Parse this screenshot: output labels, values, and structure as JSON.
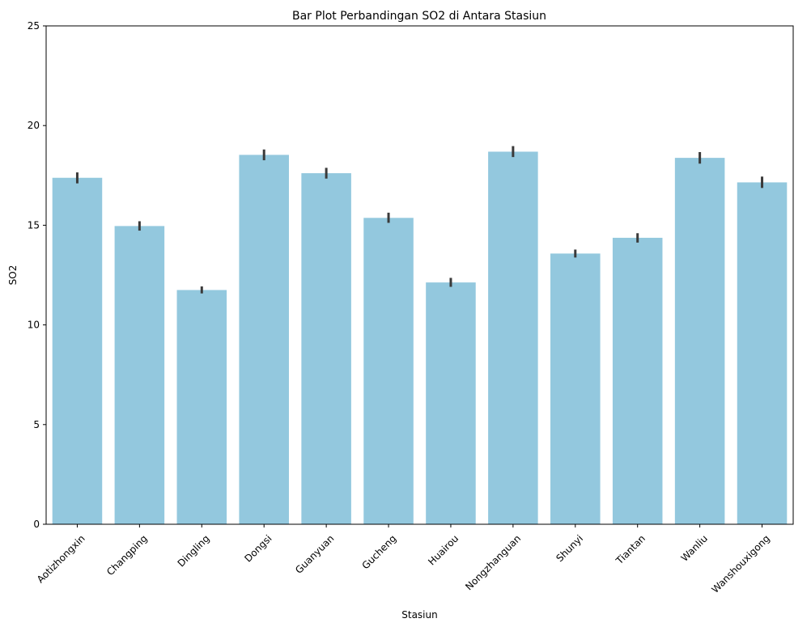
{
  "chart_data": {
    "type": "bar",
    "title": "Bar Plot Perbandingan SO2 di Antara Stasiun",
    "xlabel": "Stasiun",
    "ylabel": "SO2",
    "ylim": [
      0,
      25
    ],
    "yticks": [
      0,
      5,
      10,
      15,
      20,
      25
    ],
    "categories": [
      "Aotizhongxin",
      "Changping",
      "Dingling",
      "Dongsi",
      "Guanyuan",
      "Gucheng",
      "Huairou",
      "Nongzhanguan",
      "Shunyi",
      "Tiantan",
      "Wanliu",
      "Wanshouxigong"
    ],
    "values": [
      17.38,
      14.96,
      11.75,
      18.53,
      17.61,
      15.37,
      12.13,
      18.69,
      13.58,
      14.37,
      18.38,
      17.15
    ],
    "errors": [
      [
        17.1,
        17.65
      ],
      [
        14.73,
        15.2
      ],
      [
        11.58,
        11.93
      ],
      [
        18.26,
        18.8
      ],
      [
        17.34,
        17.88
      ],
      [
        15.12,
        15.63
      ],
      [
        11.91,
        12.36
      ],
      [
        18.42,
        18.97
      ],
      [
        13.38,
        13.78
      ],
      [
        14.13,
        14.6
      ],
      [
        18.09,
        18.67
      ],
      [
        16.87,
        17.44
      ]
    ],
    "bar_color": "#93c8de",
    "error_color": "#3a3a3a",
    "grid": false,
    "legend": "none"
  }
}
